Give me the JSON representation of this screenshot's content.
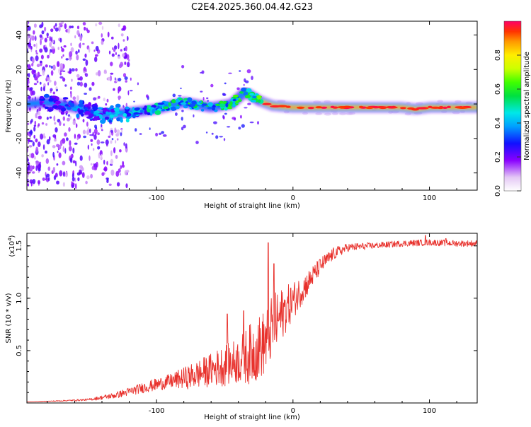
{
  "figure_title": "C2E4.2025.360.04.42.G23",
  "colorbar_label": "Normalized spectral amplitude",
  "colorbar_ticks": [
    "0.0",
    "0.2",
    "0.4",
    "0.6",
    "0.8"
  ],
  "chart_data": [
    {
      "type": "heatmap",
      "title": "C2E4.2025.360.04.42.G23",
      "xlabel": "Height of straight line (km)",
      "ylabel": "Frequency (Hz)",
      "xlim": [
        -195,
        135
      ],
      "ylim": [
        -50,
        48
      ],
      "xticks": [
        -100,
        0,
        100
      ],
      "xtick_labels": [
        "-100",
        "0",
        "100"
      ],
      "yticks": [
        -40,
        -20,
        0,
        20,
        40
      ],
      "ytick_labels": [
        "-40",
        "-20",
        "0",
        "20",
        "40"
      ],
      "colorbar": {
        "label": "Normalized spectral amplitude",
        "range": [
          0,
          1
        ],
        "ticks": [
          0.0,
          0.2,
          0.4,
          0.6,
          0.8
        ]
      },
      "ridge": {
        "x": [
          -195,
          -180,
          -160,
          -140,
          -120,
          -100,
          -80,
          -60,
          -45,
          -35,
          -25,
          -15,
          0,
          20,
          40,
          60,
          80,
          90,
          100,
          120,
          135
        ],
        "freq": [
          0,
          1,
          -2,
          -6,
          -5,
          -3,
          1,
          -2,
          0,
          7,
          2,
          -1,
          -2,
          -2,
          -2,
          -2,
          -2,
          -3,
          -2,
          -2,
          -2
        ],
        "amplitude": [
          0.25,
          0.3,
          0.35,
          0.4,
          0.45,
          0.5,
          0.55,
          0.55,
          0.6,
          0.6,
          0.65,
          0.8,
          0.9,
          0.95,
          0.95,
          0.95,
          0.9,
          0.95,
          0.9,
          0.85,
          0.8
        ]
      }
    },
    {
      "type": "line",
      "xlabel": "Height of straight line (km)",
      "ylabel": "SNR (10 * v/v)",
      "multiplier_label": "(x10",
      "multiplier_exp": "4",
      "multiplier_close": ")",
      "xlim": [
        -195,
        135
      ],
      "ylim": [
        0,
        1.62
      ],
      "xticks": [
        -100,
        0,
        100
      ],
      "xtick_labels": [
        "-100",
        "0",
        "100"
      ],
      "yticks": [
        0.5,
        1.0,
        1.5
      ],
      "ytick_labels": [
        "0.5",
        "1.0",
        "1.5"
      ],
      "series": [
        {
          "name": "SNR",
          "color": "#e8312c",
          "x": [
            -195,
            -170,
            -150,
            -130,
            -110,
            -90,
            -75,
            -60,
            -50,
            -40,
            -30,
            -20,
            -15,
            -10,
            -5,
            0,
            10,
            20,
            30,
            40,
            60,
            80,
            100,
            120,
            135
          ],
          "values": [
            0.01,
            0.02,
            0.03,
            0.07,
            0.14,
            0.2,
            0.24,
            0.3,
            0.34,
            0.38,
            0.45,
            0.55,
            0.7,
            0.78,
            0.88,
            0.96,
            1.12,
            1.3,
            1.42,
            1.48,
            1.5,
            1.52,
            1.53,
            1.52,
            1.52
          ],
          "noise_amp": [
            0.0,
            0.005,
            0.01,
            0.03,
            0.05,
            0.07,
            0.12,
            0.16,
            0.2,
            0.22,
            0.3,
            0.32,
            0.3,
            0.28,
            0.22,
            0.18,
            0.12,
            0.08,
            0.06,
            0.04,
            0.03,
            0.03,
            0.03,
            0.03,
            0.03
          ],
          "peaks": [
            {
              "x": -18,
              "y": 1.53
            },
            {
              "x": -14,
              "y": 1.33
            },
            {
              "x": -48,
              "y": 0.85
            },
            {
              "x": -36,
              "y": 0.88
            },
            {
              "x": 97,
              "y": 1.6
            },
            {
              "x": 112,
              "y": 1.57
            }
          ]
        }
      ]
    }
  ]
}
